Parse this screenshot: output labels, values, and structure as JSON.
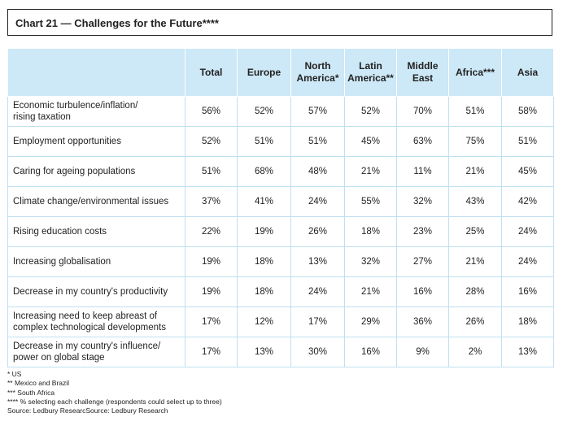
{
  "chart_data": {
    "type": "table",
    "title": "Chart 21 — Challenges for the Future****",
    "columns": [
      "",
      "Total",
      "Europe",
      "North America*",
      "Latin America**",
      "Middle East",
      "Africa***",
      "Asia"
    ],
    "rows": [
      {
        "label": "Economic turbulence/inflation/ rising taxation",
        "values": [
          "56%",
          "52%",
          "57%",
          "52%",
          "70%",
          "51%",
          "58%"
        ]
      },
      {
        "label": "Employment opportunities",
        "values": [
          "52%",
          "51%",
          "51%",
          "45%",
          "63%",
          "75%",
          "51%"
        ]
      },
      {
        "label": "Caring for ageing populations",
        "values": [
          "51%",
          "68%",
          "48%",
          "21%",
          "11%",
          "21%",
          "45%"
        ]
      },
      {
        "label": "Climate change/environmental issues",
        "values": [
          "37%",
          "41%",
          "24%",
          "55%",
          "32%",
          "43%",
          "42%"
        ]
      },
      {
        "label": "Rising education costs",
        "values": [
          "22%",
          "19%",
          "26%",
          "18%",
          "23%",
          "25%",
          "24%"
        ]
      },
      {
        "label": "Increasing globalisation",
        "values": [
          "19%",
          "18%",
          "13%",
          "32%",
          "27%",
          "21%",
          "24%"
        ]
      },
      {
        "label": "Decrease in my country's productivity",
        "values": [
          "19%",
          "18%",
          "24%",
          "21%",
          "16%",
          "28%",
          "16%"
        ]
      },
      {
        "label": "Increasing need to keep abreast of complex technological developments",
        "values": [
          "17%",
          "12%",
          "17%",
          "29%",
          "36%",
          "26%",
          "18%"
        ]
      },
      {
        "label": "Decrease in my country's influence/ power on global stage",
        "values": [
          "17%",
          "13%",
          "30%",
          "16%",
          "9%",
          "2%",
          "13%"
        ]
      }
    ],
    "footnotes": [
      "* US",
      "** Mexico and Brazil",
      "*** South Africa",
      "**** % selecting each challenge (respondents could select up to three)",
      "Source: Ledbury ResearcSource: Ledbury Research"
    ],
    "header_color": "#cde8f6",
    "rule_color": "#bfe0f1"
  }
}
